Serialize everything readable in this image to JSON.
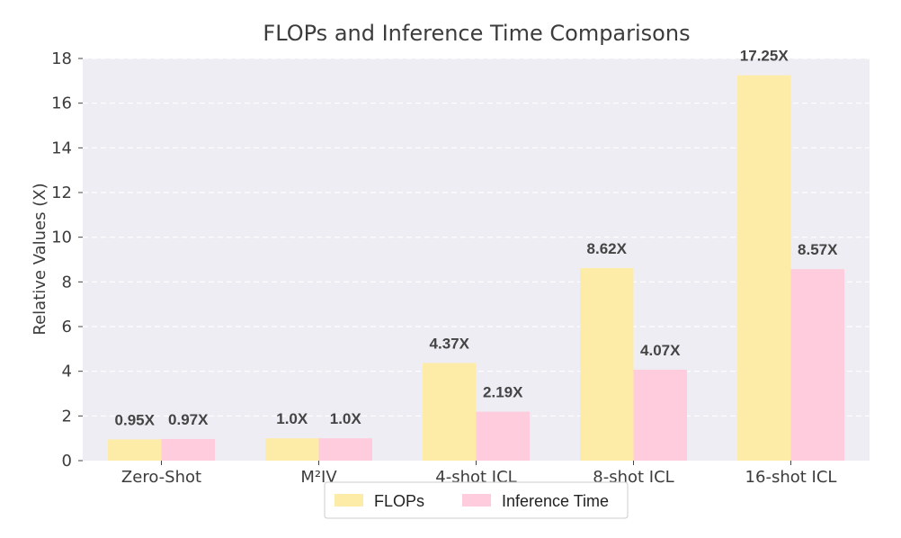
{
  "chart_data": {
    "type": "bar",
    "title": "FLOPs and Inference Time Comparisons",
    "xlabel": "",
    "ylabel": "Relative Values (X)",
    "ylim": [
      0,
      18
    ],
    "yticks": [
      "0",
      "2",
      "4",
      "6",
      "8",
      "10",
      "12",
      "14",
      "16",
      "18"
    ],
    "categories": [
      "Zero-Shot",
      "M²IV",
      "4-shot ICL",
      "8-shot ICL",
      "16-shot ICL"
    ],
    "series": [
      {
        "name": "FLOPs",
        "color": "#FDEBA8",
        "values": [
          0.95,
          1.0,
          4.37,
          8.62,
          17.25
        ],
        "labels": [
          "0.95X",
          "1.0X",
          "4.37X",
          "8.62X",
          "17.25X"
        ]
      },
      {
        "name": "Inference Time",
        "color": "#FFCCDD",
        "values": [
          0.97,
          1.0,
          2.19,
          4.07,
          8.57
        ],
        "labels": [
          "0.97X",
          "1.0X",
          "2.19X",
          "4.07X",
          "8.57X"
        ]
      }
    ],
    "grid": true,
    "legend_position": "bottom-center"
  }
}
